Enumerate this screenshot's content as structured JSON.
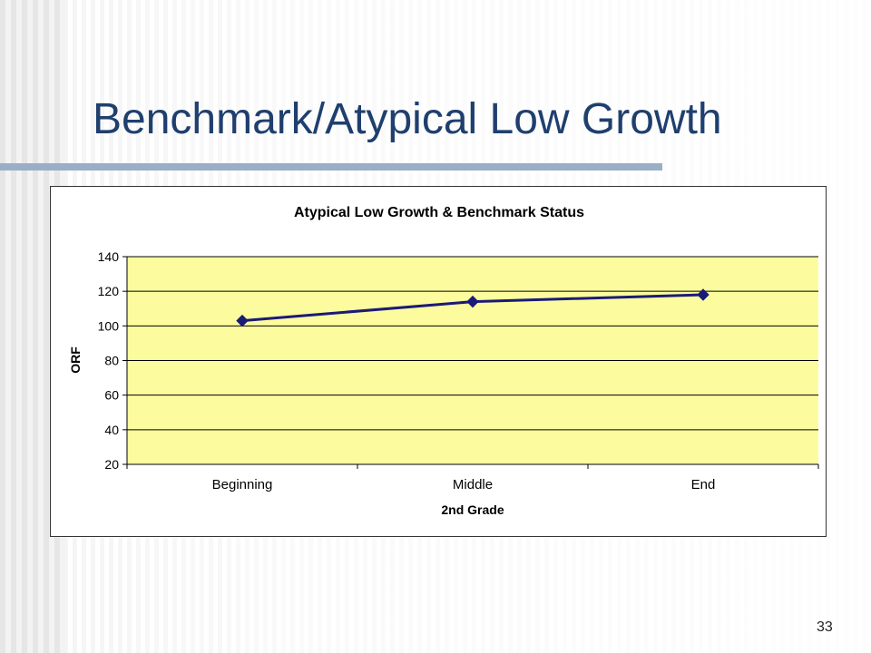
{
  "slide": {
    "title": "Benchmark/Atypical Low Growth",
    "page_number": "33"
  },
  "colors": {
    "title": "#1f3f6e",
    "plot_background": "#fcfc9e",
    "series_line": "#1a1a78",
    "marker": "#1a1a78",
    "title_rule": "#9aaec6"
  },
  "chart_data": {
    "type": "line",
    "title": "Atypical Low Growth & Benchmark Status",
    "xlabel": "2nd Grade",
    "ylabel": "ORF",
    "categories": [
      "Beginning",
      "Middle",
      "End"
    ],
    "series": [
      {
        "values": [
          103,
          114,
          118
        ]
      }
    ],
    "ylim": [
      20,
      140
    ],
    "yticks": [
      20,
      40,
      60,
      80,
      100,
      120,
      140
    ],
    "ytick_labels": [
      "20",
      "40",
      "60",
      "80",
      "100",
      "120",
      "140"
    ],
    "grid": true,
    "legend": "none"
  }
}
